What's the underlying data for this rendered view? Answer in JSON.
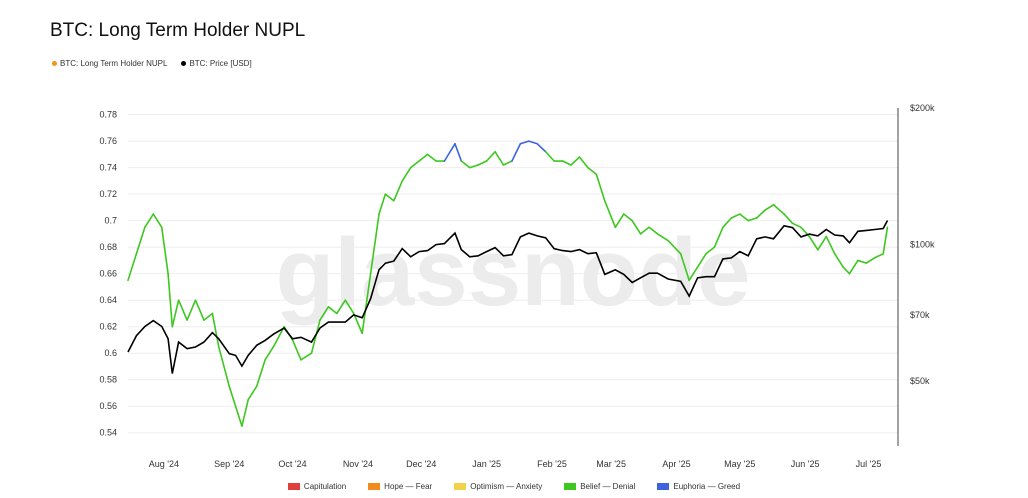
{
  "chart_data": {
    "type": "line",
    "title": "BTC: Long Term Holder NUPL",
    "watermark": "glassnode",
    "series_legend": [
      {
        "name": "BTC: Long Term Holder NUPL",
        "color": "#f7931a"
      },
      {
        "name": "BTC: Price [USD]",
        "color": "#000000"
      }
    ],
    "zones_legend": [
      {
        "name": "Capitulation",
        "color": "#e0403c"
      },
      {
        "name": "Hope — Fear",
        "color": "#f28a1e"
      },
      {
        "name": "Optimism — Anxiety",
        "color": "#f3d24a"
      },
      {
        "name": "Belief — Denial",
        "color": "#3cc81e"
      },
      {
        "name": "Euphoria — Greed",
        "color": "#3c64e0"
      }
    ],
    "zone_colors": {
      "belief": "#3cc81e",
      "euphoria": "#3c64e0"
    },
    "euphoria_threshold": 0.75,
    "left_axis": {
      "min": 0.53,
      "max": 0.785,
      "ticks": [
        0.54,
        0.56,
        0.58,
        0.6,
        0.62,
        0.64,
        0.66,
        0.68,
        0.7,
        0.72,
        0.74,
        0.76,
        0.78
      ],
      "tick_labels": [
        "0.54",
        "0.56",
        "0.58",
        "0.6",
        "0.62",
        "0.64",
        "0.66",
        "0.68",
        "0.7",
        "0.72",
        "0.74",
        "0.76",
        "0.78"
      ]
    },
    "right_axis": {
      "scale": "log",
      "min": 36000,
      "max": 200000,
      "ticks": [
        50000,
        70000,
        100000,
        200000
      ],
      "tick_labels": [
        "$50k",
        "$70k",
        "$100k",
        "$200k"
      ]
    },
    "x_axis": {
      "labels": [
        "Aug '24",
        "Sep '24",
        "Oct '24",
        "Nov '24",
        "Dec '24",
        "Jan '25",
        "Feb '25",
        "Mar '25",
        "Apr '25",
        "May '25",
        "Jun '25",
        "Jul '25"
      ],
      "label_dates": [
        "2024-08-01",
        "2024-09-01",
        "2024-10-01",
        "2024-11-01",
        "2024-12-01",
        "2025-01-01",
        "2025-02-01",
        "2025-03-01",
        "2025-04-01",
        "2025-05-01",
        "2025-06-01",
        "2025-07-01"
      ],
      "start": "2024-07-15",
      "end": "2025-07-15"
    },
    "nupl": {
      "dates": [
        "2024-07-15",
        "2024-07-19",
        "2024-07-23",
        "2024-07-27",
        "2024-07-31",
        "2024-08-03",
        "2024-08-05",
        "2024-08-08",
        "2024-08-12",
        "2024-08-16",
        "2024-08-20",
        "2024-08-24",
        "2024-08-27",
        "2024-09-01",
        "2024-09-04",
        "2024-09-07",
        "2024-09-10",
        "2024-09-14",
        "2024-09-18",
        "2024-09-22",
        "2024-09-27",
        "2024-10-01",
        "2024-10-05",
        "2024-10-10",
        "2024-10-14",
        "2024-10-18",
        "2024-10-22",
        "2024-10-26",
        "2024-10-30",
        "2024-11-03",
        "2024-11-07",
        "2024-11-11",
        "2024-11-14",
        "2024-11-18",
        "2024-11-22",
        "2024-11-26",
        "2024-11-30",
        "2024-12-04",
        "2024-12-08",
        "2024-12-12",
        "2024-12-17",
        "2024-12-20",
        "2024-12-24",
        "2024-12-28",
        "2025-01-01",
        "2025-01-05",
        "2025-01-09",
        "2025-01-13",
        "2025-01-17",
        "2025-01-21",
        "2025-01-25",
        "2025-01-29",
        "2025-02-02",
        "2025-02-06",
        "2025-02-10",
        "2025-02-14",
        "2025-02-18",
        "2025-02-22",
        "2025-02-26",
        "2025-03-03",
        "2025-03-07",
        "2025-03-11",
        "2025-03-15",
        "2025-03-19",
        "2025-03-23",
        "2025-03-28",
        "2025-04-03",
        "2025-04-07",
        "2025-04-11",
        "2025-04-15",
        "2025-04-19",
        "2025-04-23",
        "2025-04-27",
        "2025-05-01",
        "2025-05-05",
        "2025-05-09",
        "2025-05-13",
        "2025-05-17",
        "2025-05-22",
        "2025-05-26",
        "2025-05-30",
        "2025-06-03",
        "2025-06-07",
        "2025-06-11",
        "2025-06-15",
        "2025-06-19",
        "2025-06-22",
        "2025-06-26",
        "2025-06-30",
        "2025-07-04",
        "2025-07-08",
        "2025-07-10"
      ],
      "values": [
        0.655,
        0.675,
        0.695,
        0.705,
        0.695,
        0.66,
        0.62,
        0.64,
        0.625,
        0.64,
        0.625,
        0.63,
        0.605,
        0.575,
        0.56,
        0.545,
        0.565,
        0.575,
        0.595,
        0.605,
        0.62,
        0.61,
        0.595,
        0.6,
        0.625,
        0.635,
        0.63,
        0.64,
        0.63,
        0.615,
        0.66,
        0.705,
        0.72,
        0.715,
        0.73,
        0.74,
        0.745,
        0.75,
        0.745,
        0.745,
        0.758,
        0.745,
        0.74,
        0.742,
        0.745,
        0.752,
        0.742,
        0.745,
        0.758,
        0.76,
        0.758,
        0.752,
        0.745,
        0.745,
        0.742,
        0.748,
        0.74,
        0.735,
        0.715,
        0.695,
        0.705,
        0.7,
        0.69,
        0.695,
        0.69,
        0.685,
        0.675,
        0.655,
        0.665,
        0.675,
        0.68,
        0.695,
        0.702,
        0.705,
        0.7,
        0.702,
        0.708,
        0.712,
        0.705,
        0.698,
        0.695,
        0.688,
        0.678,
        0.688,
        0.675,
        0.665,
        0.66,
        0.67,
        0.668,
        0.672,
        0.675,
        0.695
      ]
    },
    "price": {
      "dates": [
        "2024-07-15",
        "2024-07-19",
        "2024-07-23",
        "2024-07-27",
        "2024-07-31",
        "2024-08-03",
        "2024-08-05",
        "2024-08-08",
        "2024-08-12",
        "2024-08-16",
        "2024-08-20",
        "2024-08-24",
        "2024-08-27",
        "2024-09-01",
        "2024-09-04",
        "2024-09-07",
        "2024-09-10",
        "2024-09-14",
        "2024-09-18",
        "2024-09-22",
        "2024-09-27",
        "2024-10-01",
        "2024-10-05",
        "2024-10-10",
        "2024-10-14",
        "2024-10-18",
        "2024-10-22",
        "2024-10-26",
        "2024-10-30",
        "2024-11-03",
        "2024-11-07",
        "2024-11-11",
        "2024-11-14",
        "2024-11-18",
        "2024-11-22",
        "2024-11-26",
        "2024-11-30",
        "2024-12-04",
        "2024-12-08",
        "2024-12-12",
        "2024-12-17",
        "2024-12-20",
        "2024-12-24",
        "2024-12-28",
        "2025-01-01",
        "2025-01-05",
        "2025-01-09",
        "2025-01-13",
        "2025-01-17",
        "2025-01-21",
        "2025-01-25",
        "2025-01-29",
        "2025-02-02",
        "2025-02-06",
        "2025-02-10",
        "2025-02-14",
        "2025-02-18",
        "2025-02-22",
        "2025-02-26",
        "2025-03-03",
        "2025-03-07",
        "2025-03-11",
        "2025-03-15",
        "2025-03-19",
        "2025-03-23",
        "2025-03-28",
        "2025-04-03",
        "2025-04-07",
        "2025-04-11",
        "2025-04-15",
        "2025-04-19",
        "2025-04-23",
        "2025-04-27",
        "2025-05-01",
        "2025-05-05",
        "2025-05-09",
        "2025-05-13",
        "2025-05-17",
        "2025-05-22",
        "2025-05-26",
        "2025-05-30",
        "2025-06-03",
        "2025-06-07",
        "2025-06-11",
        "2025-06-15",
        "2025-06-19",
        "2025-06-22",
        "2025-06-26",
        "2025-06-30",
        "2025-07-04",
        "2025-07-08",
        "2025-07-10"
      ],
      "values": [
        58000,
        63000,
        66000,
        68000,
        66000,
        62000,
        52000,
        61000,
        59000,
        59500,
        61000,
        64000,
        62000,
        57500,
        57000,
        54000,
        57000,
        60000,
        61500,
        63500,
        65500,
        62000,
        62500,
        61000,
        65500,
        67500,
        67500,
        67500,
        70000,
        69000,
        76000,
        88000,
        91000,
        92000,
        98000,
        94000,
        96500,
        97000,
        100000,
        100500,
        106000,
        97500,
        94000,
        94500,
        96500,
        98500,
        94500,
        95000,
        104000,
        106000,
        104500,
        103500,
        98000,
        97000,
        96500,
        97500,
        95500,
        96000,
        86000,
        88000,
        86000,
        82500,
        84500,
        86500,
        86500,
        84000,
        83000,
        77000,
        84500,
        85000,
        85000,
        93000,
        93500,
        96500,
        94500,
        103000,
        104000,
        103000,
        110000,
        109000,
        104000,
        105500,
        104500,
        108000,
        105000,
        104500,
        101000,
        107000,
        107500,
        108000,
        108500,
        113000
      ]
    }
  }
}
